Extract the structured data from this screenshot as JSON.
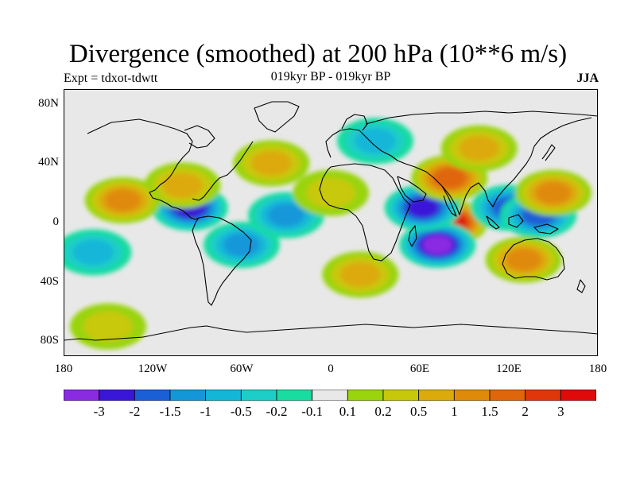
{
  "title": "Divergence (smoothed) at 200 hPa (10**6 m/s)",
  "experiment_label": "Expt = tdxot-tdwtt",
  "period_label": "019kyr BP - 019kyr BP",
  "season_label": "JJA",
  "axes": {
    "x_ticks": [
      "180",
      "120W",
      "60W",
      "0",
      "60E",
      "120E",
      "180"
    ],
    "y_ticks": [
      "80N",
      "40N",
      "0",
      "40S",
      "80S"
    ]
  },
  "colorbar": {
    "colors": [
      "#8a2be2",
      "#3a16d8",
      "#1b5fd6",
      "#1497d9",
      "#14b6d8",
      "#1ccdc8",
      "#19dca0",
      "#e8e8e8",
      "#9ad40c",
      "#c8c80a",
      "#dcaa0a",
      "#e08a0a",
      "#e0660a",
      "#e0360a",
      "#e00a0a"
    ],
    "labels": [
      "-3",
      "-2",
      "-1.5",
      "-1",
      "-0.5",
      "-0.2",
      "-0.1",
      "0.1",
      "0.2",
      "0.5",
      "1",
      "1.5",
      "2",
      "3"
    ]
  },
  "chart_data": {
    "type": "heatmap",
    "title": "Divergence (smoothed) at 200 hPa (10**6 m/s)",
    "subtitle": "019kyr BP - 019kyr BP",
    "xlim": [
      -180,
      180
    ],
    "ylim": [
      -90,
      90
    ],
    "x_ticks": [
      "180",
      "120W",
      "60W",
      "0",
      "60E",
      "120E",
      "180"
    ],
    "y_ticks": [
      "80N",
      "40N",
      "0",
      "40S",
      "80S"
    ],
    "levels": [
      -3,
      -2,
      -1.5,
      -1,
      -0.5,
      -0.2,
      -0.1,
      0.1,
      0.2,
      0.5,
      1,
      1.5,
      2,
      3
    ],
    "features": [
      {
        "lon": 80,
        "lat": 0,
        "value": 3.2
      },
      {
        "lon": 72,
        "lat": -15,
        "value": -3.2
      },
      {
        "lon": 62,
        "lat": 10,
        "value": -2.0
      },
      {
        "lon": 80,
        "lat": 30,
        "value": 1.6
      },
      {
        "lon": 120,
        "lat": 10,
        "value": -1.8
      },
      {
        "lon": 140,
        "lat": 5,
        "value": -1.5
      },
      {
        "lon": 150,
        "lat": 20,
        "value": 1.2
      },
      {
        "lon": -95,
        "lat": 10,
        "value": -2.0
      },
      {
        "lon": -60,
        "lat": -15,
        "value": -1.2
      },
      {
        "lon": -100,
        "lat": 25,
        "value": 0.8
      },
      {
        "lon": -140,
        "lat": 15,
        "value": 1.0
      },
      {
        "lon": -160,
        "lat": -20,
        "value": -0.8
      },
      {
        "lon": 130,
        "lat": -25,
        "value": 1.0
      },
      {
        "lon": 20,
        "lat": -35,
        "value": 0.8
      },
      {
        "lon": -30,
        "lat": 5,
        "value": -1.0
      },
      {
        "lon": 30,
        "lat": 55,
        "value": -0.6
      },
      {
        "lon": 100,
        "lat": 50,
        "value": 0.8
      },
      {
        "lon": -150,
        "lat": -70,
        "value": 0.4
      },
      {
        "lon": -40,
        "lat": 40,
        "value": 0.6
      },
      {
        "lon": 0,
        "lat": 20,
        "value": 0.4
      }
    ]
  }
}
